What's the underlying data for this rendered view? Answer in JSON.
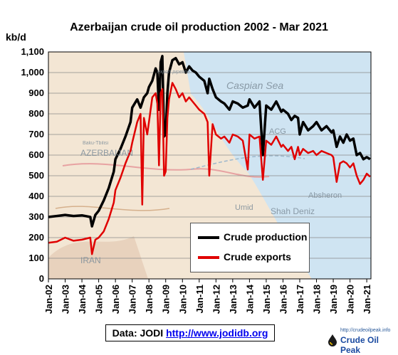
{
  "chart_data": {
    "type": "line",
    "title": "Azerbaijan crude oil production 2002 - Mar 2021",
    "ylabel": "kb/d",
    "ylim": [
      0,
      1100
    ],
    "yticks": [
      "0",
      "100",
      "200",
      "300",
      "400",
      "500",
      "600",
      "700",
      "800",
      "900",
      "1,000",
      "1,100"
    ],
    "xticks": [
      "Jan-02",
      "Jan-03",
      "Jan-04",
      "Jan-05",
      "Jan-06",
      "Jan-07",
      "Jan-08",
      "Jan-09",
      "Jan-10",
      "Jan-11",
      "Jan-12",
      "Jan-13",
      "Jan-14",
      "Jan-15",
      "Jan-16",
      "Jan-17",
      "Jan-18",
      "Jan-19",
      "Jan-20",
      "Jan-21"
    ],
    "x_range": [
      "Jan-02",
      "Mar-21"
    ],
    "grid": true,
    "legend_position": "bottom-right",
    "background_map_labels": [
      "Caspian Sea",
      "AZERBAIJAN",
      "IRAN",
      "Baku-Tbilisi",
      "ACG",
      "Absheron",
      "Umid",
      "Shah Deniz",
      "export pipeline"
    ],
    "series": [
      {
        "name": "Crude production",
        "color": "#000000",
        "points": [
          [
            2002.0,
            300
          ],
          [
            2002.5,
            305
          ],
          [
            2003.0,
            310
          ],
          [
            2003.5,
            305
          ],
          [
            2004.0,
            308
          ],
          [
            2004.5,
            300
          ],
          [
            2004.6,
            255
          ],
          [
            2004.8,
            310
          ],
          [
            2005.0,
            330
          ],
          [
            2005.3,
            380
          ],
          [
            2005.6,
            440
          ],
          [
            2005.9,
            520
          ],
          [
            2006.0,
            580
          ],
          [
            2006.3,
            630
          ],
          [
            2006.6,
            690
          ],
          [
            2006.9,
            760
          ],
          [
            2007.0,
            830
          ],
          [
            2007.3,
            870
          ],
          [
            2007.5,
            830
          ],
          [
            2007.7,
            880
          ],
          [
            2007.9,
            900
          ],
          [
            2008.0,
            930
          ],
          [
            2008.2,
            960
          ],
          [
            2008.4,
            1020
          ],
          [
            2008.5,
            1000
          ],
          [
            2008.6,
            820
          ],
          [
            2008.7,
            1050
          ],
          [
            2008.8,
            1080
          ],
          [
            2008.9,
            690
          ],
          [
            2009.0,
            700
          ],
          [
            2009.1,
            900
          ],
          [
            2009.2,
            1000
          ],
          [
            2009.4,
            1060
          ],
          [
            2009.6,
            1070
          ],
          [
            2009.8,
            1040
          ],
          [
            2010.0,
            1050
          ],
          [
            2010.2,
            1000
          ],
          [
            2010.4,
            1030
          ],
          [
            2010.6,
            1010
          ],
          [
            2010.8,
            1000
          ],
          [
            2011.0,
            980
          ],
          [
            2011.3,
            960
          ],
          [
            2011.5,
            900
          ],
          [
            2011.6,
            970
          ],
          [
            2011.8,
            920
          ],
          [
            2012.0,
            880
          ],
          [
            2012.3,
            860
          ],
          [
            2012.5,
            850
          ],
          [
            2012.8,
            820
          ],
          [
            2013.0,
            860
          ],
          [
            2013.3,
            850
          ],
          [
            2013.6,
            830
          ],
          [
            2013.9,
            840
          ],
          [
            2014.0,
            870
          ],
          [
            2014.3,
            830
          ],
          [
            2014.6,
            860
          ],
          [
            2014.8,
            600
          ],
          [
            2015.0,
            840
          ],
          [
            2015.3,
            820
          ],
          [
            2015.6,
            860
          ],
          [
            2015.9,
            810
          ],
          [
            2016.0,
            820
          ],
          [
            2016.3,
            800
          ],
          [
            2016.5,
            770
          ],
          [
            2016.7,
            790
          ],
          [
            2016.9,
            780
          ],
          [
            2017.0,
            700
          ],
          [
            2017.2,
            760
          ],
          [
            2017.5,
            720
          ],
          [
            2017.8,
            740
          ],
          [
            2018.0,
            760
          ],
          [
            2018.3,
            720
          ],
          [
            2018.6,
            740
          ],
          [
            2018.9,
            710
          ],
          [
            2019.0,
            720
          ],
          [
            2019.2,
            640
          ],
          [
            2019.4,
            690
          ],
          [
            2019.6,
            660
          ],
          [
            2019.8,
            700
          ],
          [
            2020.0,
            670
          ],
          [
            2020.2,
            680
          ],
          [
            2020.4,
            600
          ],
          [
            2020.6,
            610
          ],
          [
            2020.8,
            580
          ],
          [
            2021.0,
            590
          ],
          [
            2021.2,
            580
          ]
        ]
      },
      {
        "name": "Crude exports",
        "color": "#e00000",
        "points": [
          [
            2002.0,
            175
          ],
          [
            2002.5,
            180
          ],
          [
            2003.0,
            200
          ],
          [
            2003.5,
            185
          ],
          [
            2004.0,
            190
          ],
          [
            2004.5,
            200
          ],
          [
            2004.6,
            120
          ],
          [
            2004.8,
            190
          ],
          [
            2005.0,
            200
          ],
          [
            2005.3,
            230
          ],
          [
            2005.6,
            290
          ],
          [
            2005.9,
            370
          ],
          [
            2006.0,
            430
          ],
          [
            2006.3,
            490
          ],
          [
            2006.6,
            560
          ],
          [
            2006.9,
            620
          ],
          [
            2007.0,
            660
          ],
          [
            2007.3,
            760
          ],
          [
            2007.5,
            800
          ],
          [
            2007.6,
            360
          ],
          [
            2007.7,
            780
          ],
          [
            2007.9,
            700
          ],
          [
            2008.0,
            760
          ],
          [
            2008.2,
            880
          ],
          [
            2008.4,
            900
          ],
          [
            2008.5,
            850
          ],
          [
            2008.6,
            550
          ],
          [
            2008.7,
            900
          ],
          [
            2008.8,
            920
          ],
          [
            2008.9,
            500
          ],
          [
            2009.0,
            520
          ],
          [
            2009.1,
            780
          ],
          [
            2009.2,
            870
          ],
          [
            2009.4,
            950
          ],
          [
            2009.6,
            920
          ],
          [
            2009.8,
            880
          ],
          [
            2010.0,
            900
          ],
          [
            2010.2,
            860
          ],
          [
            2010.4,
            880
          ],
          [
            2010.6,
            860
          ],
          [
            2010.8,
            840
          ],
          [
            2011.0,
            820
          ],
          [
            2011.3,
            800
          ],
          [
            2011.5,
            760
          ],
          [
            2011.6,
            500
          ],
          [
            2011.8,
            750
          ],
          [
            2012.0,
            700
          ],
          [
            2012.3,
            680
          ],
          [
            2012.5,
            690
          ],
          [
            2012.8,
            660
          ],
          [
            2013.0,
            700
          ],
          [
            2013.3,
            690
          ],
          [
            2013.6,
            670
          ],
          [
            2013.9,
            530
          ],
          [
            2014.0,
            700
          ],
          [
            2014.3,
            680
          ],
          [
            2014.6,
            690
          ],
          [
            2014.8,
            480
          ],
          [
            2015.0,
            670
          ],
          [
            2015.3,
            650
          ],
          [
            2015.6,
            690
          ],
          [
            2015.9,
            640
          ],
          [
            2016.0,
            650
          ],
          [
            2016.3,
            620
          ],
          [
            2016.5,
            640
          ],
          [
            2016.7,
            580
          ],
          [
            2016.9,
            640
          ],
          [
            2017.0,
            600
          ],
          [
            2017.2,
            630
          ],
          [
            2017.5,
            610
          ],
          [
            2017.8,
            620
          ],
          [
            2018.0,
            600
          ],
          [
            2018.3,
            620
          ],
          [
            2018.6,
            610
          ],
          [
            2018.9,
            600
          ],
          [
            2019.0,
            590
          ],
          [
            2019.2,
            470
          ],
          [
            2019.4,
            560
          ],
          [
            2019.6,
            570
          ],
          [
            2019.8,
            560
          ],
          [
            2020.0,
            540
          ],
          [
            2020.2,
            560
          ],
          [
            2020.4,
            500
          ],
          [
            2020.6,
            460
          ],
          [
            2020.8,
            480
          ],
          [
            2021.0,
            510
          ],
          [
            2021.2,
            495
          ]
        ]
      }
    ]
  },
  "source": {
    "prefix": "Data: JODI",
    "link": "http://www.jodidb.org"
  },
  "brand": {
    "url": "http://crudeoilpeak.info",
    "name": "Crude Oil Peak"
  }
}
